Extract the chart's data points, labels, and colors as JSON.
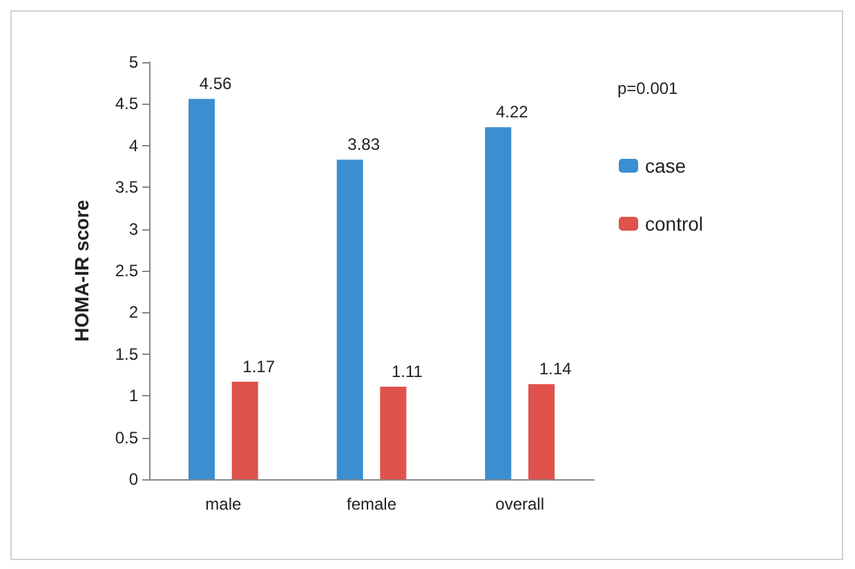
{
  "chart_data": {
    "type": "bar",
    "ylabel": "HOMA-IR score",
    "categories": [
      "male",
      "female",
      "overall"
    ],
    "series": [
      {
        "name": "case",
        "color": "#3b8ed0",
        "values": [
          4.56,
          3.83,
          4.22
        ]
      },
      {
        "name": "control",
        "color": "#e0524c",
        "values": [
          1.17,
          1.11,
          1.14
        ]
      }
    ],
    "ylim": [
      0,
      5
    ],
    "yticks": [
      0,
      0.5,
      1,
      1.5,
      2,
      2.5,
      3,
      3.5,
      4,
      4.5,
      5
    ],
    "data_labels": true,
    "grid": false,
    "legend": "right",
    "annotations": [
      "p=0.001"
    ]
  }
}
